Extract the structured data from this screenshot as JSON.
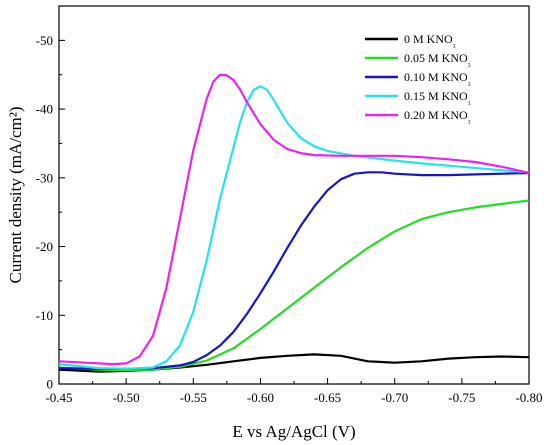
{
  "chart_data": {
    "type": "line",
    "xlabel": "E vs Ag/AgCl  (V)",
    "ylabel": "Current density (mA/cm²)",
    "xlim": [
      -0.45,
      -0.8
    ],
    "ylim": [
      0,
      -55
    ],
    "xticks": [
      "-0.45",
      "-0.50",
      "-0.55",
      "-0.60",
      "-0.65",
      "-0.70",
      "-0.75",
      "-0.80"
    ],
    "yticks": [
      "0",
      "-10",
      "-20",
      "-30",
      "-40",
      "-50"
    ],
    "grid": false,
    "legend_position": "top-right",
    "series": [
      {
        "name": "0 M KNO₃",
        "color": "#000000",
        "x": [
          -0.45,
          -0.48,
          -0.5,
          -0.52,
          -0.54,
          -0.56,
          -0.58,
          -0.6,
          -0.62,
          -0.64,
          -0.66,
          -0.68,
          -0.7,
          -0.72,
          -0.74,
          -0.76,
          -0.78,
          -0.8
        ],
        "y": [
          -2.1,
          -1.8,
          -1.9,
          -2.1,
          -2.4,
          -2.8,
          -3.3,
          -3.8,
          -4.1,
          -4.3,
          -4.1,
          -3.3,
          -3.1,
          -3.3,
          -3.7,
          -3.9,
          -4.0,
          -3.9
        ]
      },
      {
        "name": "0.05 M KNO₃",
        "color": "#22dd22",
        "x": [
          -0.45,
          -0.48,
          -0.5,
          -0.52,
          -0.54,
          -0.56,
          -0.58,
          -0.6,
          -0.62,
          -0.64,
          -0.66,
          -0.68,
          -0.7,
          -0.72,
          -0.74,
          -0.76,
          -0.78,
          -0.8
        ],
        "y": [
          -2.4,
          -2.1,
          -2.0,
          -2.1,
          -2.5,
          -3.4,
          -5.2,
          -8.0,
          -11.0,
          -14.0,
          -17.0,
          -19.8,
          -22.2,
          -24.0,
          -25.0,
          -25.7,
          -26.2,
          -26.7
        ]
      },
      {
        "name": "0.10 M KNO₃",
        "color": "#1414c8",
        "x": [
          -0.45,
          -0.48,
          -0.5,
          -0.52,
          -0.54,
          -0.55,
          -0.56,
          -0.57,
          -0.58,
          -0.59,
          -0.6,
          -0.61,
          -0.62,
          -0.63,
          -0.64,
          -0.65,
          -0.66,
          -0.67,
          -0.68,
          -0.69,
          -0.7,
          -0.72,
          -0.74,
          -0.76,
          -0.78,
          -0.8
        ],
        "y": [
          -2.3,
          -2.2,
          -2.2,
          -2.3,
          -2.7,
          -3.2,
          -4.2,
          -5.6,
          -7.6,
          -10.2,
          -13.2,
          -16.4,
          -19.8,
          -23.0,
          -25.8,
          -28.2,
          -29.8,
          -30.6,
          -30.8,
          -30.8,
          -30.6,
          -30.4,
          -30.4,
          -30.5,
          -30.6,
          -30.7
        ]
      },
      {
        "name": "0.15 M KNO₃",
        "color": "#22e4ea",
        "x": [
          -0.45,
          -0.48,
          -0.5,
          -0.52,
          -0.53,
          -0.54,
          -0.55,
          -0.56,
          -0.57,
          -0.58,
          -0.585,
          -0.59,
          -0.595,
          -0.6,
          -0.605,
          -0.61,
          -0.62,
          -0.63,
          -0.64,
          -0.65,
          -0.67,
          -0.7,
          -0.72,
          -0.75,
          -0.78,
          -0.8
        ],
        "y": [
          -2.9,
          -2.3,
          -2.2,
          -2.4,
          -3.3,
          -5.6,
          -10.5,
          -18.0,
          -27.0,
          -34.5,
          -38.2,
          -41.0,
          -42.8,
          -43.3,
          -42.8,
          -41.3,
          -38.0,
          -35.8,
          -34.6,
          -33.9,
          -33.2,
          -32.5,
          -32.1,
          -31.6,
          -31.1,
          -30.8
        ]
      },
      {
        "name": "0.20 M KNO₃",
        "color": "#ee22ee",
        "x": [
          -0.45,
          -0.47,
          -0.49,
          -0.5,
          -0.51,
          -0.52,
          -0.53,
          -0.54,
          -0.55,
          -0.56,
          -0.565,
          -0.57,
          -0.575,
          -0.58,
          -0.585,
          -0.59,
          -0.6,
          -0.61,
          -0.62,
          -0.63,
          -0.64,
          -0.66,
          -0.68,
          -0.7,
          -0.72,
          -0.74,
          -0.76,
          -0.78,
          -0.8
        ],
        "y": [
          -3.3,
          -3.1,
          -2.9,
          -3.0,
          -4.0,
          -7.0,
          -14.0,
          -24.0,
          -34.0,
          -41.5,
          -44.0,
          -45.0,
          -44.9,
          -44.2,
          -42.8,
          -41.0,
          -37.8,
          -35.5,
          -34.2,
          -33.6,
          -33.3,
          -33.2,
          -33.2,
          -33.2,
          -33.0,
          -32.7,
          -32.3,
          -31.6,
          -30.7
        ]
      }
    ]
  }
}
